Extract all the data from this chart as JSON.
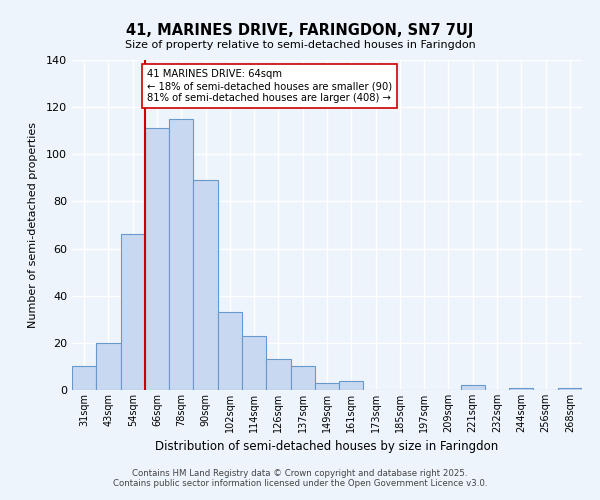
{
  "title": "41, MARINES DRIVE, FARINGDON, SN7 7UJ",
  "subtitle": "Size of property relative to semi-detached houses in Faringdon",
  "xlabel": "Distribution of semi-detached houses by size in Faringdon",
  "ylabel": "Number of semi-detached properties",
  "bin_labels": [
    "31sqm",
    "43sqm",
    "54sqm",
    "66sqm",
    "78sqm",
    "90sqm",
    "102sqm",
    "114sqm",
    "126sqm",
    "137sqm",
    "149sqm",
    "161sqm",
    "173sqm",
    "185sqm",
    "197sqm",
    "209sqm",
    "221sqm",
    "232sqm",
    "244sqm",
    "256sqm",
    "268sqm"
  ],
  "bar_values": [
    10,
    20,
    66,
    111,
    115,
    89,
    33,
    23,
    13,
    10,
    3,
    4,
    0,
    0,
    0,
    0,
    2,
    0,
    1,
    0,
    1
  ],
  "bar_color": "#c8d8f0",
  "bar_edge_color": "#6699cc",
  "background_color": "#eef4fb",
  "grid_color": "#ffffff",
  "vline_x_index": 3,
  "vline_color": "#cc0000",
  "annotation_text": "41 MARINES DRIVE: 64sqm\n← 18% of semi-detached houses are smaller (90)\n81% of semi-detached houses are larger (408) →",
  "annotation_box_color": "#ffffff",
  "annotation_box_edge": "#cc0000",
  "ylim": [
    0,
    140
  ],
  "yticks": [
    0,
    20,
    40,
    60,
    80,
    100,
    120,
    140
  ],
  "footnote1": "Contains HM Land Registry data © Crown copyright and database right 2025.",
  "footnote2": "Contains public sector information licensed under the Open Government Licence v3.0."
}
